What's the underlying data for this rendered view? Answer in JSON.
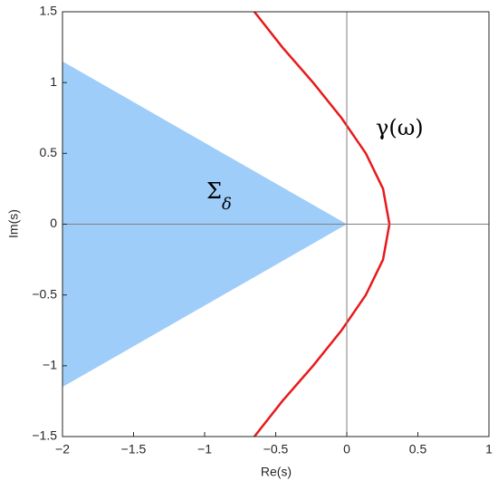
{
  "chart_data": {
    "type": "line",
    "xlabel": "Re(s)",
    "ylabel": "Im(s)",
    "xlim": [
      -2,
      1
    ],
    "ylim": [
      -1.5,
      1.5
    ],
    "xticks": [
      {
        "value": -2,
        "label": "−2"
      },
      {
        "value": -1.5,
        "label": "−1.5"
      },
      {
        "value": -1,
        "label": "−1"
      },
      {
        "value": -0.5,
        "label": "−0.5"
      },
      0,
      0.5,
      1
    ],
    "yticks": [
      {
        "value": -1.5,
        "label": "−1.5"
      },
      {
        "value": -1,
        "label": "−1"
      },
      {
        "value": -0.5,
        "label": "−0.5"
      },
      0,
      0.5,
      1,
      1.5
    ],
    "series": [
      {
        "fill": true,
        "color": "#9fcdf9",
        "x": [
          -2,
          0,
          -2
        ],
        "values": [
          1.15,
          0,
          -1.15
        ]
      },
      {
        "fill": false,
        "color": "#e8191b",
        "x": [
          -0.65,
          -0.454,
          -0.237,
          -0.037,
          0.134,
          0.255,
          0.3,
          0.255,
          0.134,
          -0.037,
          -0.237,
          -0.454,
          -0.65
        ],
        "values": [
          -1.5,
          -1.25,
          -1,
          -0.75,
          -0.5,
          -0.25,
          0,
          0.25,
          0.5,
          0.75,
          1,
          1.25,
          1.5
        ]
      }
    ],
    "annotations": [
      {
        "text": "Σ",
        "subscript": "δ"
      },
      {
        "text": "γ(ω)"
      }
    ]
  }
}
